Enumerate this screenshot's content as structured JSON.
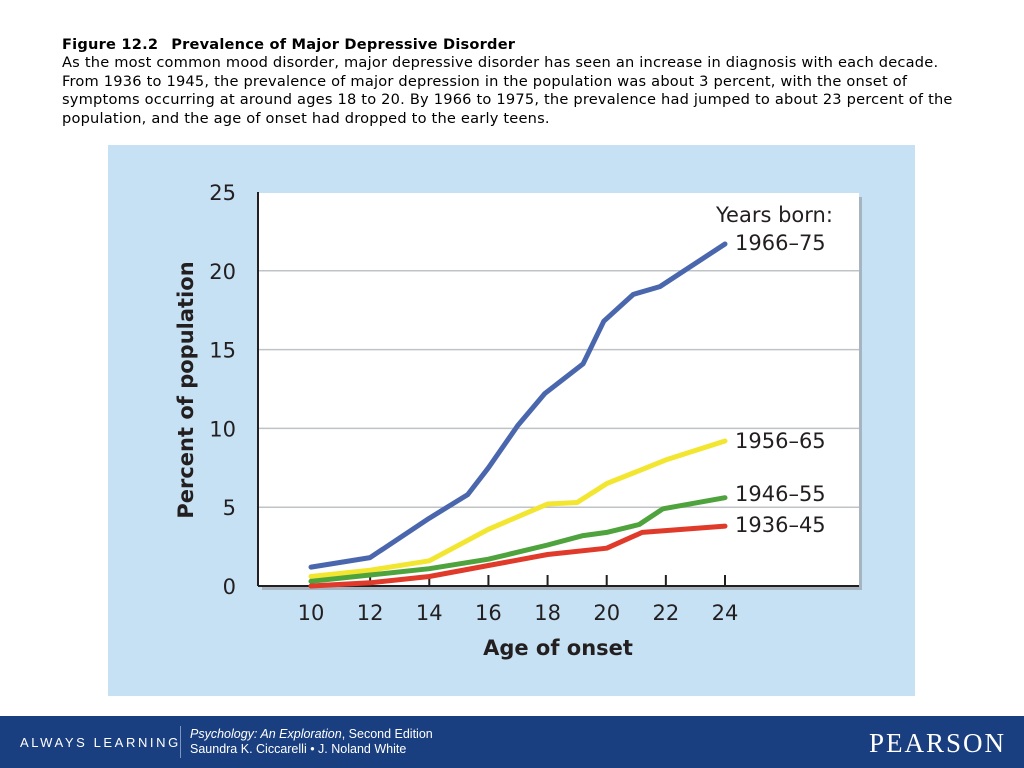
{
  "caption": {
    "figure_label": "Figure 12.2",
    "title": "Prevalence of Major Depressive Disorder",
    "body": "As the most common mood disorder, major depressive disorder has seen an increase in diagnosis with each decade. From 1936 to 1945, the prevalence of major depression in the population was about 3 percent, with the onset of symptoms occurring at around ages 18 to 20. By 1966 to 1975, the prevalence had jumped to about 23 percent of the population, and the age of onset had dropped to the early teens."
  },
  "chart_data": {
    "type": "line",
    "xlabel": "Age of onset",
    "ylabel": "Percent of population",
    "xlim": [
      10,
      24
    ],
    "ylim": [
      0,
      25
    ],
    "x_ticks": [
      10,
      12,
      14,
      16,
      18,
      20,
      22,
      24
    ],
    "y_ticks": [
      0,
      5,
      10,
      15,
      20,
      25
    ],
    "grid": "horizontal",
    "legend_title": "Years born:",
    "legend_placement": "inline-right",
    "series": [
      {
        "name": "1966–75",
        "color": "#4a67ae",
        "points": [
          [
            10,
            1.2
          ],
          [
            12,
            1.8
          ],
          [
            14,
            4.3
          ],
          [
            15.3,
            5.8
          ],
          [
            16,
            7.5
          ],
          [
            17,
            10.2
          ],
          [
            17.9,
            12.2
          ],
          [
            19.2,
            14.1
          ],
          [
            19.9,
            16.8
          ],
          [
            20.9,
            18.5
          ],
          [
            21.8,
            19.0
          ],
          [
            24,
            21.7
          ]
        ]
      },
      {
        "name": "1956–65",
        "color": "#f3e630",
        "points": [
          [
            10,
            0.6
          ],
          [
            12,
            1.0
          ],
          [
            14,
            1.6
          ],
          [
            16,
            3.6
          ],
          [
            18,
            5.2
          ],
          [
            19,
            5.3
          ],
          [
            20,
            6.5
          ],
          [
            22,
            8.0
          ],
          [
            24,
            9.2
          ]
        ]
      },
      {
        "name": "1946–55",
        "color": "#4ea33c",
        "points": [
          [
            10,
            0.3
          ],
          [
            12,
            0.7
          ],
          [
            14,
            1.1
          ],
          [
            16,
            1.7
          ],
          [
            18,
            2.6
          ],
          [
            19.2,
            3.2
          ],
          [
            20,
            3.4
          ],
          [
            21.1,
            3.9
          ],
          [
            21.9,
            4.9
          ],
          [
            24,
            5.6
          ]
        ]
      },
      {
        "name": "1936–45",
        "color": "#e03a2a",
        "points": [
          [
            10,
            0.0
          ],
          [
            12,
            0.2
          ],
          [
            14,
            0.6
          ],
          [
            16,
            1.3
          ],
          [
            18,
            2.0
          ],
          [
            20,
            2.4
          ],
          [
            21.2,
            3.4
          ],
          [
            24,
            3.8
          ]
        ]
      }
    ]
  },
  "footer": {
    "tagline": "ALWAYS LEARNING",
    "book_title": "Psychology: An Exploration",
    "edition": ", Second Edition",
    "authors": "Saundra K. Ciccarelli • J. Noland White",
    "publisher": "PEARSON"
  }
}
